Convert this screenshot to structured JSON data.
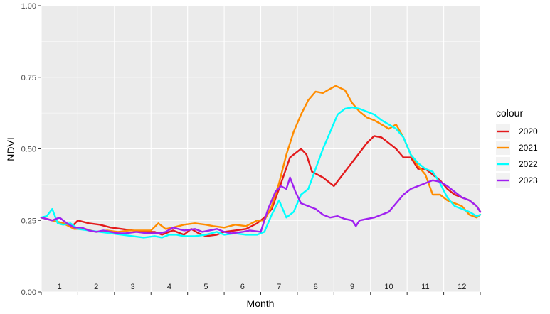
{
  "chart_data": {
    "type": "line",
    "xlabel": "Month",
    "ylabel": "NDVI",
    "ylim": [
      0,
      1
    ],
    "y_ticks": [
      "0.00",
      "0.25",
      "0.50",
      "0.75",
      "1.00"
    ],
    "xlim": [
      0,
      12
    ],
    "month_labels": [
      "1",
      "2",
      "3",
      "4",
      "5",
      "6",
      "7",
      "8",
      "9",
      "10",
      "11",
      "12"
    ],
    "grid": true,
    "legend": {
      "title": "colour",
      "position": "right"
    },
    "series": [
      {
        "name": "2020",
        "color": "#e31a1c",
        "points": [
          [
            0.0,
            0.26
          ],
          [
            0.3,
            0.25
          ],
          [
            0.6,
            0.24
          ],
          [
            0.85,
            0.23
          ],
          [
            1.0,
            0.25
          ],
          [
            1.3,
            0.24
          ],
          [
            1.6,
            0.235
          ],
          [
            1.9,
            0.225
          ],
          [
            2.2,
            0.22
          ],
          [
            2.5,
            0.215
          ],
          [
            2.8,
            0.21
          ],
          [
            3.1,
            0.21
          ],
          [
            3.3,
            0.2
          ],
          [
            3.6,
            0.215
          ],
          [
            3.9,
            0.2
          ],
          [
            4.1,
            0.22
          ],
          [
            4.3,
            0.205
          ],
          [
            4.5,
            0.195
          ],
          [
            4.8,
            0.2
          ],
          [
            5.0,
            0.21
          ],
          [
            5.3,
            0.215
          ],
          [
            5.6,
            0.22
          ],
          [
            5.9,
            0.24
          ],
          [
            6.1,
            0.26
          ],
          [
            6.3,
            0.29
          ],
          [
            6.5,
            0.36
          ],
          [
            6.8,
            0.47
          ],
          [
            7.1,
            0.5
          ],
          [
            7.25,
            0.48
          ],
          [
            7.4,
            0.42
          ],
          [
            7.7,
            0.4
          ],
          [
            8.0,
            0.37
          ],
          [
            8.3,
            0.42
          ],
          [
            8.6,
            0.47
          ],
          [
            8.9,
            0.52
          ],
          [
            9.1,
            0.545
          ],
          [
            9.3,
            0.54
          ],
          [
            9.5,
            0.52
          ],
          [
            9.7,
            0.5
          ],
          [
            9.9,
            0.47
          ],
          [
            10.1,
            0.47
          ],
          [
            10.3,
            0.43
          ],
          [
            10.5,
            0.43
          ],
          [
            10.7,
            0.41
          ],
          [
            10.9,
            0.39
          ],
          [
            11.1,
            0.36
          ],
          [
            11.3,
            0.34
          ],
          [
            11.5,
            0.33
          ],
          [
            11.7,
            0.32
          ],
          [
            11.9,
            0.3
          ],
          [
            12.0,
            0.28
          ]
        ]
      },
      {
        "name": "2021",
        "color": "#ff8c00",
        "points": [
          [
            0.0,
            0.26
          ],
          [
            0.3,
            0.25
          ],
          [
            0.6,
            0.24
          ],
          [
            0.9,
            0.22
          ],
          [
            1.2,
            0.22
          ],
          [
            1.5,
            0.21
          ],
          [
            1.8,
            0.215
          ],
          [
            2.1,
            0.21
          ],
          [
            2.4,
            0.215
          ],
          [
            2.7,
            0.215
          ],
          [
            3.0,
            0.215
          ],
          [
            3.2,
            0.24
          ],
          [
            3.4,
            0.22
          ],
          [
            3.6,
            0.225
          ],
          [
            3.9,
            0.235
          ],
          [
            4.2,
            0.24
          ],
          [
            4.5,
            0.235
          ],
          [
            4.7,
            0.23
          ],
          [
            5.0,
            0.225
          ],
          [
            5.3,
            0.235
          ],
          [
            5.6,
            0.23
          ],
          [
            5.9,
            0.25
          ],
          [
            6.1,
            0.25
          ],
          [
            6.3,
            0.3
          ],
          [
            6.5,
            0.38
          ],
          [
            6.7,
            0.48
          ],
          [
            6.9,
            0.56
          ],
          [
            7.1,
            0.62
          ],
          [
            7.3,
            0.67
          ],
          [
            7.5,
            0.7
          ],
          [
            7.7,
            0.695
          ],
          [
            7.9,
            0.71
          ],
          [
            8.05,
            0.72
          ],
          [
            8.3,
            0.705
          ],
          [
            8.5,
            0.66
          ],
          [
            8.7,
            0.63
          ],
          [
            8.9,
            0.61
          ],
          [
            9.1,
            0.6
          ],
          [
            9.3,
            0.585
          ],
          [
            9.5,
            0.57
          ],
          [
            9.7,
            0.585
          ],
          [
            9.9,
            0.54
          ],
          [
            10.1,
            0.48
          ],
          [
            10.3,
            0.44
          ],
          [
            10.5,
            0.41
          ],
          [
            10.7,
            0.34
          ],
          [
            10.9,
            0.34
          ],
          [
            11.1,
            0.32
          ],
          [
            11.3,
            0.31
          ],
          [
            11.5,
            0.3
          ],
          [
            11.7,
            0.27
          ],
          [
            11.9,
            0.26
          ],
          [
            12.0,
            0.27
          ]
        ]
      },
      {
        "name": "2022",
        "color": "#00ffff",
        "points": [
          [
            0.0,
            0.26
          ],
          [
            0.15,
            0.265
          ],
          [
            0.3,
            0.29
          ],
          [
            0.45,
            0.24
          ],
          [
            0.6,
            0.235
          ],
          [
            0.8,
            0.24
          ],
          [
            1.0,
            0.22
          ],
          [
            1.3,
            0.215
          ],
          [
            1.6,
            0.21
          ],
          [
            1.9,
            0.205
          ],
          [
            2.2,
            0.2
          ],
          [
            2.5,
            0.195
          ],
          [
            2.8,
            0.19
          ],
          [
            3.1,
            0.195
          ],
          [
            3.3,
            0.19
          ],
          [
            3.5,
            0.2
          ],
          [
            3.7,
            0.2
          ],
          [
            3.9,
            0.195
          ],
          [
            4.2,
            0.195
          ],
          [
            4.5,
            0.2
          ],
          [
            4.8,
            0.21
          ],
          [
            5.0,
            0.2
          ],
          [
            5.3,
            0.205
          ],
          [
            5.6,
            0.2
          ],
          [
            5.9,
            0.2
          ],
          [
            6.1,
            0.21
          ],
          [
            6.3,
            0.27
          ],
          [
            6.5,
            0.32
          ],
          [
            6.7,
            0.26
          ],
          [
            6.9,
            0.28
          ],
          [
            7.1,
            0.34
          ],
          [
            7.3,
            0.36
          ],
          [
            7.5,
            0.43
          ],
          [
            7.7,
            0.5
          ],
          [
            7.9,
            0.56
          ],
          [
            8.1,
            0.62
          ],
          [
            8.3,
            0.64
          ],
          [
            8.5,
            0.645
          ],
          [
            8.7,
            0.64
          ],
          [
            8.9,
            0.63
          ],
          [
            9.1,
            0.62
          ],
          [
            9.3,
            0.6
          ],
          [
            9.5,
            0.585
          ],
          [
            9.7,
            0.57
          ],
          [
            9.9,
            0.54
          ],
          [
            10.1,
            0.48
          ],
          [
            10.3,
            0.45
          ],
          [
            10.5,
            0.43
          ],
          [
            10.7,
            0.42
          ],
          [
            10.9,
            0.38
          ],
          [
            11.1,
            0.33
          ],
          [
            11.3,
            0.3
          ],
          [
            11.5,
            0.29
          ],
          [
            11.7,
            0.28
          ],
          [
            11.9,
            0.265
          ],
          [
            12.0,
            0.27
          ]
        ]
      },
      {
        "name": "2023",
        "color": "#a020f0",
        "points": [
          [
            0.0,
            0.26
          ],
          [
            0.3,
            0.25
          ],
          [
            0.5,
            0.26
          ],
          [
            0.7,
            0.24
          ],
          [
            0.9,
            0.225
          ],
          [
            1.1,
            0.225
          ],
          [
            1.3,
            0.215
          ],
          [
            1.5,
            0.21
          ],
          [
            1.7,
            0.215
          ],
          [
            1.9,
            0.21
          ],
          [
            2.1,
            0.205
          ],
          [
            2.3,
            0.205
          ],
          [
            2.6,
            0.21
          ],
          [
            2.9,
            0.205
          ],
          [
            3.2,
            0.205
          ],
          [
            3.4,
            0.21
          ],
          [
            3.6,
            0.225
          ],
          [
            3.9,
            0.215
          ],
          [
            4.2,
            0.22
          ],
          [
            4.4,
            0.21
          ],
          [
            4.6,
            0.215
          ],
          [
            4.8,
            0.22
          ],
          [
            5.0,
            0.21
          ],
          [
            5.2,
            0.205
          ],
          [
            5.5,
            0.21
          ],
          [
            5.7,
            0.215
          ],
          [
            6.0,
            0.21
          ],
          [
            6.2,
            0.29
          ],
          [
            6.4,
            0.35
          ],
          [
            6.55,
            0.37
          ],
          [
            6.7,
            0.36
          ],
          [
            6.8,
            0.4
          ],
          [
            6.95,
            0.35
          ],
          [
            7.1,
            0.31
          ],
          [
            7.3,
            0.3
          ],
          [
            7.5,
            0.29
          ],
          [
            7.7,
            0.27
          ],
          [
            7.9,
            0.26
          ],
          [
            8.1,
            0.265
          ],
          [
            8.3,
            0.255
          ],
          [
            8.5,
            0.25
          ],
          [
            8.6,
            0.23
          ],
          [
            8.7,
            0.25
          ],
          [
            8.9,
            0.255
          ],
          [
            9.1,
            0.26
          ],
          [
            9.3,
            0.27
          ],
          [
            9.5,
            0.28
          ],
          [
            9.7,
            0.31
          ],
          [
            9.9,
            0.34
          ],
          [
            10.1,
            0.36
          ],
          [
            10.3,
            0.37
          ],
          [
            10.5,
            0.38
          ],
          [
            10.7,
            0.39
          ],
          [
            10.9,
            0.385
          ],
          [
            11.1,
            0.37
          ],
          [
            11.3,
            0.35
          ],
          [
            11.5,
            0.33
          ],
          [
            11.7,
            0.32
          ],
          [
            11.9,
            0.3
          ],
          [
            12.0,
            0.28
          ]
        ]
      }
    ]
  }
}
